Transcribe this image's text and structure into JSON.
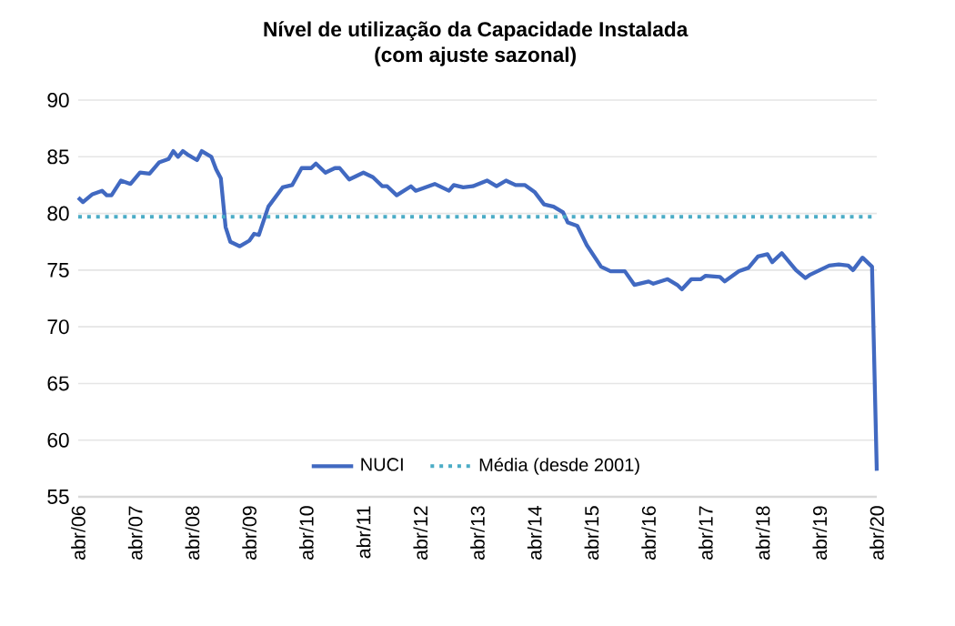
{
  "chart_data": {
    "type": "line",
    "title": "Nível de utilização da Capacidade Instalada",
    "subtitle": "(com ajuste sazonal)",
    "x": [
      "2006-04",
      "2006-05",
      "2006-07",
      "2006-09",
      "2006-10",
      "2006-11",
      "2007-01",
      "2007-03",
      "2007-05",
      "2007-07",
      "2007-09",
      "2007-11",
      "2007-12",
      "2008-01",
      "2008-02",
      "2008-03",
      "2008-05",
      "2008-06",
      "2008-08",
      "2008-09",
      "2008-10",
      "2008-11",
      "2008-12",
      "2009-02",
      "2009-04",
      "2009-05",
      "2009-06",
      "2009-08",
      "2009-11",
      "2010-01",
      "2010-03",
      "2010-05",
      "2010-06",
      "2010-08",
      "2010-10",
      "2010-11",
      "2011-01",
      "2011-04",
      "2011-06",
      "2011-08",
      "2011-09",
      "2011-11",
      "2012-02",
      "2012-03",
      "2012-05",
      "2012-07",
      "2012-10",
      "2012-11",
      "2013-01",
      "2013-03",
      "2013-06",
      "2013-08",
      "2013-10",
      "2013-12",
      "2014-02",
      "2014-04",
      "2014-06",
      "2014-08",
      "2014-10",
      "2014-11",
      "2015-01",
      "2015-03",
      "2015-06",
      "2015-08",
      "2015-11",
      "2016-01",
      "2016-04",
      "2016-05",
      "2016-08",
      "2016-10",
      "2016-11",
      "2017-01",
      "2017-03",
      "2017-04",
      "2017-07",
      "2017-08",
      "2017-11",
      "2018-01",
      "2018-03",
      "2018-05",
      "2018-06",
      "2018-08",
      "2018-11",
      "2019-01",
      "2019-02",
      "2019-04",
      "2019-06",
      "2019-08",
      "2019-10",
      "2019-11",
      "2020-01",
      "2020-03",
      "2020-04"
    ],
    "series": [
      {
        "name": "NUCI",
        "color": "#4169c1",
        "values": [
          81.4,
          81.0,
          81.7,
          82.0,
          81.6,
          81.6,
          82.9,
          82.6,
          83.6,
          83.5,
          84.5,
          84.8,
          85.5,
          85.0,
          85.5,
          85.2,
          84.7,
          85.5,
          85.0,
          83.9,
          83.1,
          78.8,
          77.5,
          77.1,
          77.6,
          78.2,
          78.1,
          80.6,
          82.3,
          82.5,
          84.0,
          84.0,
          84.4,
          83.6,
          84.0,
          84.0,
          83.0,
          83.6,
          83.2,
          82.4,
          82.4,
          81.6,
          82.4,
          82.0,
          82.3,
          82.6,
          82.0,
          82.5,
          82.3,
          82.4,
          82.9,
          82.4,
          82.9,
          82.5,
          82.5,
          81.9,
          80.8,
          80.6,
          80.1,
          79.2,
          78.9,
          77.2,
          75.3,
          74.9,
          74.9,
          73.7,
          74.0,
          73.8,
          74.2,
          73.7,
          73.3,
          74.2,
          74.2,
          74.5,
          74.4,
          74.0,
          74.9,
          75.2,
          76.2,
          76.4,
          75.7,
          76.5,
          75.0,
          74.3,
          74.6,
          75.0,
          75.4,
          75.5,
          75.4,
          75.0,
          76.1,
          75.3,
          57.3
        ]
      }
    ],
    "ref_lines": [
      {
        "axis": "y",
        "value": 79.7,
        "label": "Média (desde 2001)",
        "color": "#4bacc6",
        "line_style": "dotted"
      }
    ],
    "xlim": [
      "2006-04",
      "2020-04"
    ],
    "xticks": [
      {
        "value": "2006-04",
        "label": "abr/06"
      },
      {
        "value": "2007-04",
        "label": "abr/07"
      },
      {
        "value": "2008-04",
        "label": "abr/08"
      },
      {
        "value": "2009-04",
        "label": "abr/09"
      },
      {
        "value": "2010-04",
        "label": "abr/10"
      },
      {
        "value": "2011-04",
        "label": "abr/11"
      },
      {
        "value": "2012-04",
        "label": "abr/12"
      },
      {
        "value": "2013-04",
        "label": "abr/13"
      },
      {
        "value": "2014-04",
        "label": "abr/14"
      },
      {
        "value": "2015-04",
        "label": "abr/15"
      },
      {
        "value": "2016-04",
        "label": "abr/16"
      },
      {
        "value": "2017-04",
        "label": "abr/17"
      },
      {
        "value": "2018-04",
        "label": "abr/18"
      },
      {
        "value": "2019-04",
        "label": "abr/19"
      },
      {
        "value": "2020-04",
        "label": "abr/20"
      }
    ],
    "ylim": [
      55,
      90
    ],
    "yticks": [
      55,
      60,
      65,
      70,
      75,
      80,
      85,
      90
    ],
    "grid": "y",
    "legend": "bottom",
    "marker": "none",
    "line_style": "solid"
  }
}
